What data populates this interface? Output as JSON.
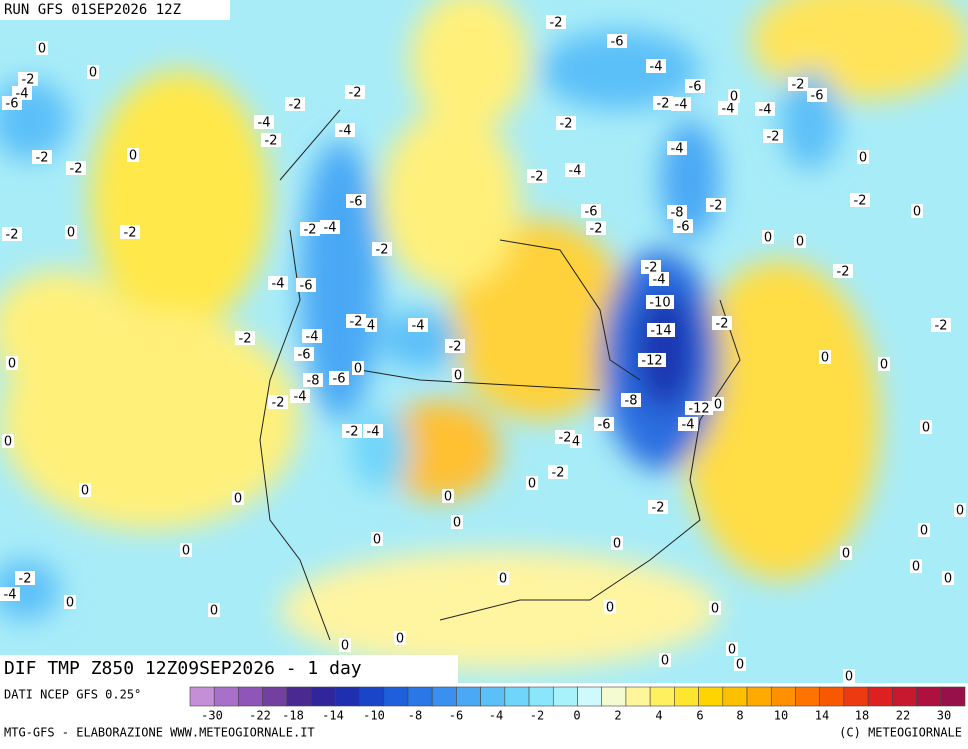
{
  "header": {
    "run": "RUN GFS 01SEP2026 12Z",
    "title": "DIF TMP Z850 12Z09SEP2026 - 1 day",
    "source": "DATI NCEP GFS 0.25°",
    "credit": "MTG-GFS - ELABORAZIONE WWW.METEOGIORNALE.IT",
    "copyright": "(C) METEOGIORNALE"
  },
  "colorbar": {
    "colors": [
      "#c58fd8",
      "#a870c8",
      "#8f55b8",
      "#7440a0",
      "#4a2a90",
      "#30259a",
      "#1f2fb0",
      "#1b45c8",
      "#1f5fdc",
      "#2a78e8",
      "#3a90f0",
      "#4aa8f5",
      "#5cc0f8",
      "#70d5fa",
      "#8ae6fb",
      "#a8f2fc",
      "#cffafd",
      "#f4fbd0",
      "#fff59a",
      "#fff060",
      "#ffe530",
      "#ffd400",
      "#ffc000",
      "#ffaa00",
      "#ff9000",
      "#ff7400",
      "#f85800",
      "#ee3a10",
      "#de2020",
      "#c81830",
      "#b01040",
      "#98104a"
    ],
    "labels": [
      -30,
      -22,
      -18,
      -14,
      -10,
      -8,
      -6,
      -4,
      -2,
      0,
      2,
      4,
      6,
      8,
      10,
      14,
      18,
      22,
      30
    ]
  },
  "contour_labels": [
    0,
    0,
    -2,
    -4,
    -6,
    -2,
    -2,
    -4,
    -2,
    -4,
    -2,
    -2,
    0,
    -2,
    0,
    -2,
    -6,
    -2,
    -4,
    -2,
    -4,
    -6,
    -2,
    -4,
    -6,
    -2,
    4,
    -4,
    -2,
    -8,
    -6,
    0,
    0,
    -2,
    -4,
    -2,
    -4,
    -2,
    -4,
    -2,
    -6,
    -2,
    -6,
    -2,
    -4,
    -6,
    -2,
    -4,
    -4,
    -4,
    0,
    -2,
    -6,
    -2,
    -4,
    0,
    -8,
    -6,
    -2,
    -2,
    0,
    0,
    0,
    -2,
    -2,
    -4,
    -10,
    -14,
    -2,
    -2,
    -12,
    -8,
    -12,
    0,
    -4,
    -6,
    -2,
    4,
    -2,
    0,
    -2,
    0,
    0,
    0,
    0,
    0,
    0,
    0,
    0,
    0,
    0,
    0,
    0,
    0,
    0,
    0,
    0,
    0,
    0,
    -2,
    -4,
    0,
    0,
    0,
    0,
    0,
    0,
    0,
    0,
    0,
    0
  ]
}
